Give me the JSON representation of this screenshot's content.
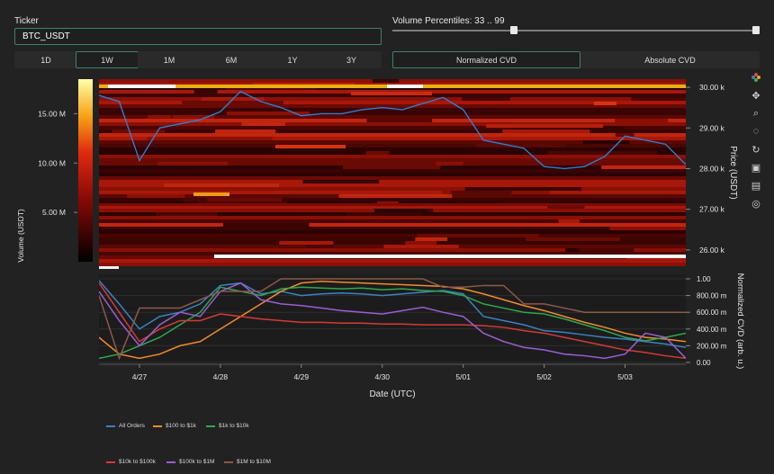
{
  "ticker": {
    "label": "Ticker",
    "value": "BTC_USDT"
  },
  "percentiles": {
    "label": "Volume Percentiles: 33 .. 99",
    "low": 33,
    "high": 99,
    "min": 0,
    "max": 100
  },
  "ranges": [
    {
      "label": "1D",
      "active": false
    },
    {
      "label": "1W",
      "active": true
    },
    {
      "label": "1M",
      "active": false
    },
    {
      "label": "6M",
      "active": false
    },
    {
      "label": "1Y",
      "active": false
    },
    {
      "label": "3Y",
      "active": false
    }
  ],
  "modes": [
    {
      "label": "Normalized CVD",
      "active": true
    },
    {
      "label": "Absolute CVD",
      "active": false
    }
  ],
  "toolbar": [
    "logo-icon",
    "pan-icon",
    "zoom-icon",
    "lasso-icon",
    "reset-icon",
    "save-icon",
    "hover-icon",
    "crosshair-icon"
  ],
  "heatmap": {
    "colorbar_ticks": [
      "15.00 M",
      "10.00 M",
      "5.00 M"
    ],
    "colorbar_values": [
      15000000,
      10000000,
      5000000
    ],
    "colorbar_max": 18500000,
    "ylabel_left": "Volume (USDT)",
    "ylabel_right": "Price (USDT)",
    "price_ticks": [
      "30.00 k",
      "29.00 k",
      "28.00 k",
      "27.00 k",
      "26.00 k"
    ],
    "price_values": [
      30000,
      29000,
      28000,
      27000,
      26000
    ],
    "price_range": [
      25600,
      30200
    ]
  },
  "cvd": {
    "ylabel": "Normalized CVD (arb. u.)",
    "ticks": [
      "1.00",
      "800.00 m",
      "600.00 m",
      "400.00 m",
      "200.00 m",
      "0.00"
    ],
    "tick_values": [
      1.0,
      0.8,
      0.6,
      0.4,
      0.2,
      0.0
    ],
    "x_ticks": [
      "4/27",
      "4/28",
      "4/29",
      "4/30",
      "5/01",
      "5/02",
      "5/03"
    ],
    "xlabel": "Date (UTC)"
  },
  "legend": [
    {
      "name": "All Orders",
      "color": "#3b82c4"
    },
    {
      "name": "$100 to $1k",
      "color": "#f08c2e"
    },
    {
      "name": "$1k to $10k",
      "color": "#2fa84f"
    },
    {
      "name": "$10k to $100k",
      "color": "#d63a34"
    },
    {
      "name": "$100k to $1M",
      "color": "#9a5fd0"
    },
    {
      "name": "$1M to $10M",
      "color": "#8c5a4a"
    }
  ],
  "chart_data": {
    "type": "line",
    "x": [
      "4/26 12:00",
      "4/26 18:00",
      "4/27 00:00",
      "4/27 06:00",
      "4/27 12:00",
      "4/27 18:00",
      "4/28 00:00",
      "4/28 06:00",
      "4/28 12:00",
      "4/28 18:00",
      "4/29 00:00",
      "4/29 06:00",
      "4/29 12:00",
      "4/29 18:00",
      "4/30 00:00",
      "4/30 06:00",
      "4/30 12:00",
      "4/30 18:00",
      "5/01 00:00",
      "5/01 06:00",
      "5/01 12:00",
      "5/01 18:00",
      "5/02 00:00",
      "5/02 06:00",
      "5/02 12:00",
      "5/02 18:00",
      "5/03 00:00",
      "5/03 06:00",
      "5/03 12:00",
      "5/03 18:00"
    ],
    "price": [
      29800,
      29650,
      28200,
      29000,
      29100,
      29200,
      29400,
      29900,
      29650,
      29500,
      29300,
      29350,
      29350,
      29450,
      29500,
      29450,
      29600,
      29750,
      29450,
      28700,
      28600,
      28500,
      28050,
      28000,
      28050,
      28300,
      28800,
      28700,
      28600,
      28100
    ],
    "series": [
      {
        "name": "All Orders",
        "values": [
          0.98,
          0.7,
          0.4,
          0.55,
          0.6,
          0.7,
          0.92,
          0.95,
          0.82,
          0.85,
          0.8,
          0.82,
          0.83,
          0.82,
          0.8,
          0.82,
          0.84,
          0.86,
          0.82,
          0.55,
          0.5,
          0.45,
          0.38,
          0.36,
          0.33,
          0.3,
          0.28,
          0.25,
          0.22,
          0.18
        ]
      },
      {
        "name": "$100 to $1k",
        "values": [
          0.3,
          0.1,
          0.05,
          0.1,
          0.2,
          0.25,
          0.4,
          0.55,
          0.7,
          0.85,
          0.95,
          0.97,
          0.96,
          0.95,
          0.94,
          0.93,
          0.92,
          0.91,
          0.88,
          0.82,
          0.75,
          0.68,
          0.62,
          0.55,
          0.48,
          0.42,
          0.35,
          0.3,
          0.28,
          0.25
        ]
      },
      {
        "name": "$1k to $10k",
        "values": [
          0.05,
          0.1,
          0.2,
          0.3,
          0.45,
          0.6,
          0.9,
          0.85,
          0.8,
          0.88,
          0.9,
          0.89,
          0.88,
          0.89,
          0.87,
          0.88,
          0.86,
          0.85,
          0.8,
          0.7,
          0.65,
          0.6,
          0.58,
          0.52,
          0.45,
          0.38,
          0.3,
          0.26,
          0.3,
          0.35
        ]
      },
      {
        "name": "$10k to $100k",
        "values": [
          0.95,
          0.6,
          0.25,
          0.4,
          0.5,
          0.5,
          0.58,
          0.55,
          0.52,
          0.5,
          0.48,
          0.48,
          0.47,
          0.47,
          0.46,
          0.46,
          0.45,
          0.45,
          0.45,
          0.44,
          0.42,
          0.38,
          0.35,
          0.3,
          0.25,
          0.2,
          0.15,
          0.12,
          0.08,
          0.05
        ]
      },
      {
        "name": "$100k to $1M",
        "values": [
          0.85,
          0.5,
          0.2,
          0.45,
          0.6,
          0.55,
          0.85,
          0.95,
          0.75,
          0.7,
          0.68,
          0.65,
          0.62,
          0.6,
          0.58,
          0.62,
          0.66,
          0.6,
          0.55,
          0.35,
          0.25,
          0.18,
          0.15,
          0.1,
          0.08,
          0.05,
          0.1,
          0.35,
          0.3,
          0.05
        ]
      },
      {
        "name": "$1M to $10M",
        "values": [
          0.8,
          0.05,
          0.65,
          0.65,
          0.65,
          0.75,
          0.85,
          0.85,
          0.85,
          1.0,
          1.0,
          1.0,
          1.0,
          1.0,
          1.0,
          1.0,
          1.0,
          0.9,
          0.9,
          0.92,
          0.92,
          0.7,
          0.7,
          0.65,
          0.6,
          0.6,
          0.6,
          0.6,
          0.6,
          0.6
        ]
      }
    ],
    "ylim": [
      0,
      1
    ],
    "xlabel": "Date (UTC)",
    "ylabel": "Normalized CVD (arb. u.)",
    "legend_position": "bottom"
  }
}
